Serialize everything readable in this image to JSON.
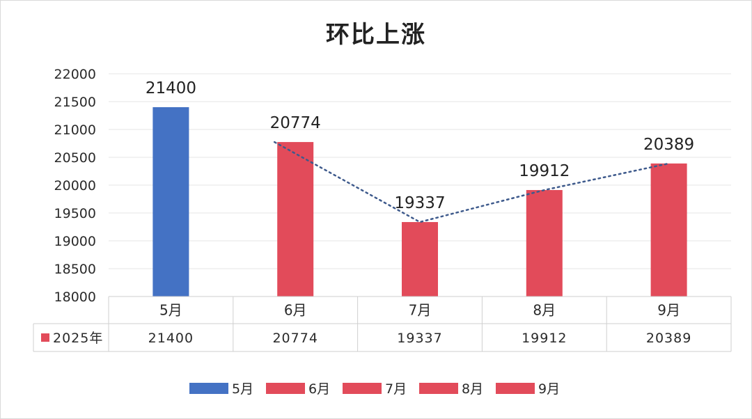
{
  "chart_data": {
    "type": "bar",
    "title": "环比上涨",
    "categories": [
      "5月",
      "6月",
      "7月",
      "8月",
      "9月"
    ],
    "values": [
      21400,
      20774,
      19337,
      19912,
      20389
    ],
    "colors": [
      "#4472c4",
      "#e24b5a",
      "#e24b5a",
      "#e24b5a",
      "#e24b5a"
    ],
    "ylim": [
      18000,
      22000
    ],
    "yticks": [
      18000,
      18500,
      19000,
      19500,
      20000,
      20500,
      21000,
      21500,
      22000
    ],
    "grid": true,
    "data_table": {
      "row_label": "2025年",
      "row_color": "#e24b5a",
      "values": [
        "21400",
        "20774",
        "19337",
        "19912",
        "20389"
      ]
    },
    "trendline": {
      "style": "dotted",
      "color": "#3e5a8c",
      "from_category": "6月",
      "to_category": "9月"
    },
    "legend": {
      "position": "bottom",
      "entries": [
        {
          "label": "5月",
          "color": "#4472c4"
        },
        {
          "label": "6月",
          "color": "#e24b5a"
        },
        {
          "label": "7月",
          "color": "#e24b5a"
        },
        {
          "label": "8月",
          "color": "#e24b5a"
        },
        {
          "label": "9月",
          "color": "#e24b5a"
        }
      ]
    }
  }
}
